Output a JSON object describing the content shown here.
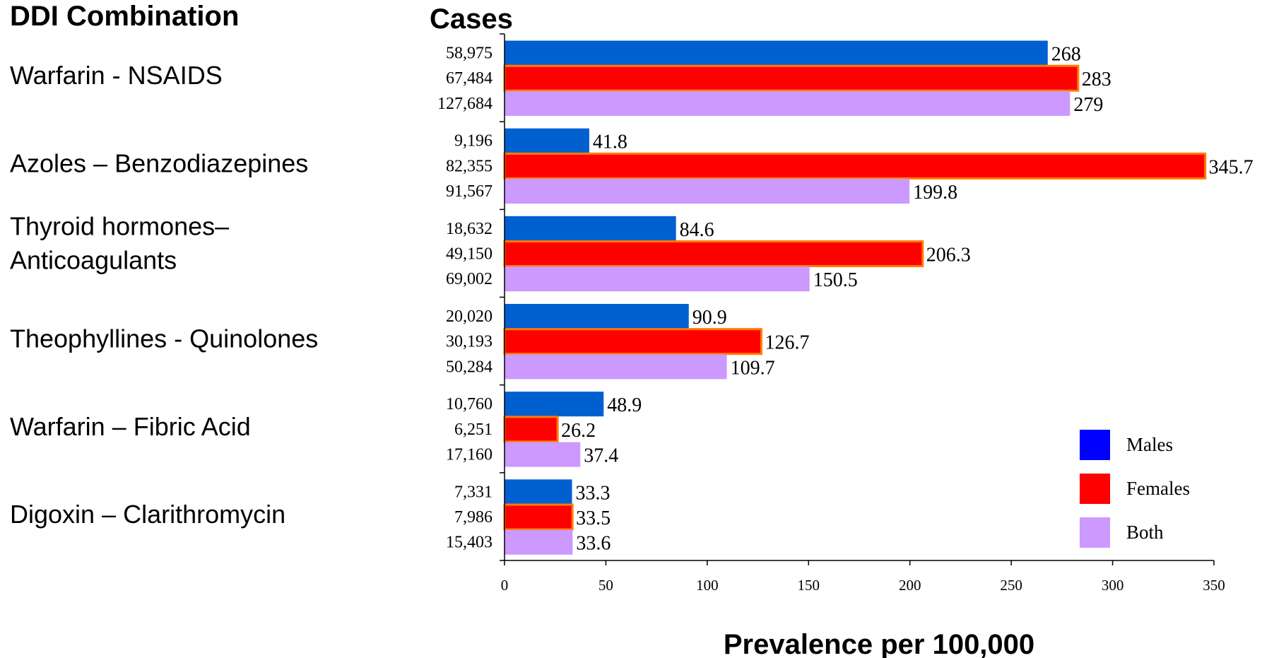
{
  "chart_data": {
    "type": "bar",
    "orientation": "horizontal",
    "category_header": "DDI Combination",
    "cases_header": "Cases",
    "xlabel": "Prevalence per 100,000",
    "xlim": [
      0,
      350
    ],
    "xticks": [
      0,
      50,
      100,
      150,
      200,
      250,
      300,
      350
    ],
    "xtick_labels": [
      "0",
      "50",
      "100",
      "150",
      "200",
      "250",
      "300",
      "350"
    ],
    "grid": false,
    "legend_position": "bottom-right",
    "colors": {
      "Males": "#0060d0",
      "Females": "#ff0000",
      "Females_border": "#ff7a00",
      "Both": "#cc99ff",
      "legend_Males": "#0000ff"
    },
    "categories": [
      [
        "Warfarin - NSAIDS"
      ],
      [
        "Azoles – Benzodiazepines"
      ],
      [
        "Thyroid hormones–",
        "Anticoagulants"
      ],
      [
        "Theophyllines - Quinolones"
      ],
      [
        "Warfarin – Fibric Acid"
      ],
      [
        "Digoxin – Clarithromycin"
      ]
    ],
    "series": [
      {
        "name": "Males",
        "values": [
          268,
          41.8,
          84.6,
          90.9,
          48.9,
          33.3
        ],
        "value_labels": [
          "268",
          "41.8",
          "84.6",
          "90.9",
          "48.9",
          "33.3"
        ],
        "cases": [
          "58,975",
          "9,196",
          "18,632",
          "20,020",
          "10,760",
          "7,331"
        ]
      },
      {
        "name": "Females",
        "values": [
          283,
          345.7,
          206.3,
          126.7,
          26.2,
          33.5
        ],
        "value_labels": [
          "283",
          "345.7",
          "206.3",
          "126.7",
          "26.2",
          "33.5"
        ],
        "cases": [
          "67,484",
          "82,355",
          "49,150",
          "30,193",
          "6,251",
          "7,986"
        ]
      },
      {
        "name": "Both",
        "values": [
          279,
          199.8,
          150.5,
          109.7,
          37.4,
          33.6
        ],
        "value_labels": [
          "279",
          "199.8",
          "150.5",
          "109.7",
          "37.4",
          "33.6"
        ],
        "cases": [
          "127,684",
          "91,567",
          "69,002",
          "50,284",
          "17,160",
          "15,403"
        ]
      }
    ]
  }
}
